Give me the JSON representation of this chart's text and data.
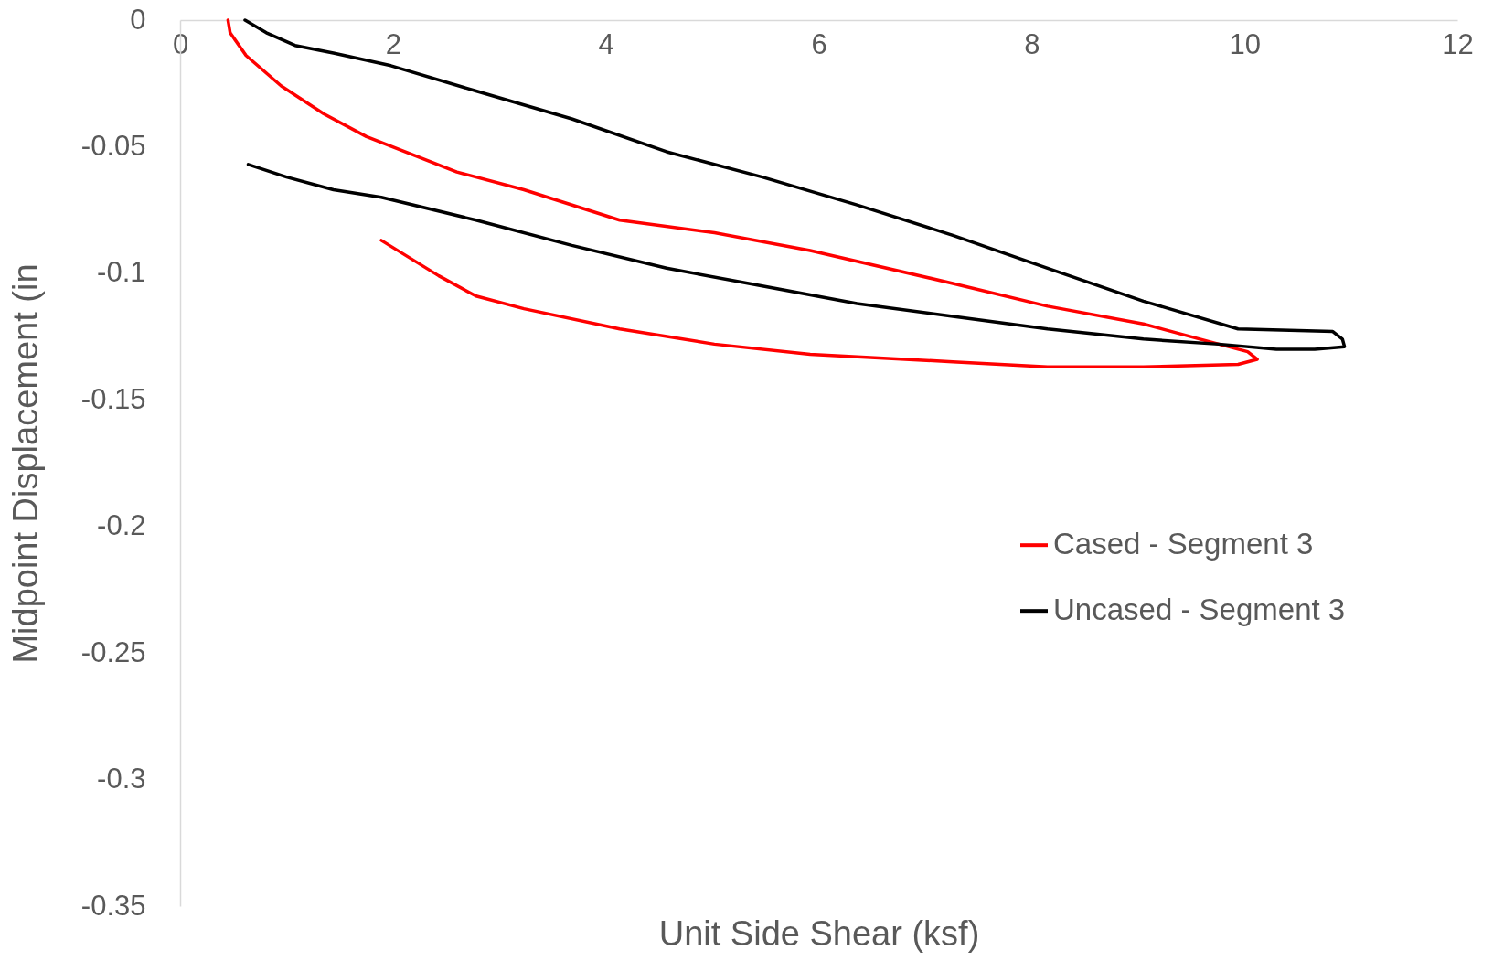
{
  "chart_data": {
    "type": "line",
    "xlabel": "Unit Side Shear (ksf)",
    "ylabel": "Midpoint Displacement (in",
    "xlim": [
      0,
      12
    ],
    "xticks": [
      0,
      2,
      4,
      6,
      8,
      10,
      12
    ],
    "ylim": [
      -0.35,
      0
    ],
    "yticks": [
      -0.35,
      -0.3,
      -0.25,
      -0.2,
      -0.15,
      -0.1,
      -0.05,
      0
    ],
    "grid": false,
    "legend": "right",
    "marker": "none",
    "line_style": "solid",
    "series": [
      {
        "name": "Cased - Segment 3",
        "color": "#ff0000",
        "x": [
          0.45,
          0.47,
          0.62,
          0.95,
          1.35,
          1.75,
          2.6,
          3.23,
          4.13,
          5.02,
          5.92,
          7.26,
          8.15,
          9.05,
          9.67,
          10.03,
          10.12,
          9.94,
          9.05,
          8.15,
          7.26,
          5.92,
          5.02,
          4.13,
          3.23,
          2.78,
          2.43,
          1.89
        ],
        "values": [
          0,
          -0.005,
          -0.014,
          -0.026,
          -0.037,
          -0.046,
          -0.06,
          -0.067,
          -0.079,
          -0.084,
          -0.091,
          -0.104,
          -0.113,
          -0.12,
          -0.127,
          -0.131,
          -0.134,
          -0.136,
          -0.137,
          -0.137,
          -0.135,
          -0.132,
          -0.128,
          -0.122,
          -0.114,
          -0.109,
          -0.101,
          -0.087
        ]
      },
      {
        "name": "Uncased - Segment 3",
        "color": "#000000",
        "x": [
          0.61,
          0.81,
          1.08,
          1.44,
          1.98,
          2.78,
          3.68,
          4.57,
          5.47,
          6.36,
          7.26,
          8.15,
          9.05,
          9.94,
          10.83,
          10.92,
          10.94,
          10.66,
          10.3,
          9.76,
          9.05,
          8.15,
          7.26,
          6.36,
          5.47,
          4.57,
          3.68,
          2.78,
          1.89,
          1.44,
          1.0,
          0.64
        ],
        "values": [
          0,
          -0.005,
          -0.01,
          -0.013,
          -0.018,
          -0.028,
          -0.039,
          -0.052,
          -0.062,
          -0.073,
          -0.085,
          -0.098,
          -0.111,
          -0.122,
          -0.123,
          -0.126,
          -0.129,
          -0.13,
          -0.13,
          -0.128,
          -0.126,
          -0.122,
          -0.117,
          -0.112,
          -0.105,
          -0.098,
          -0.089,
          -0.079,
          -0.07,
          -0.067,
          -0.062,
          -0.057
        ]
      }
    ]
  }
}
